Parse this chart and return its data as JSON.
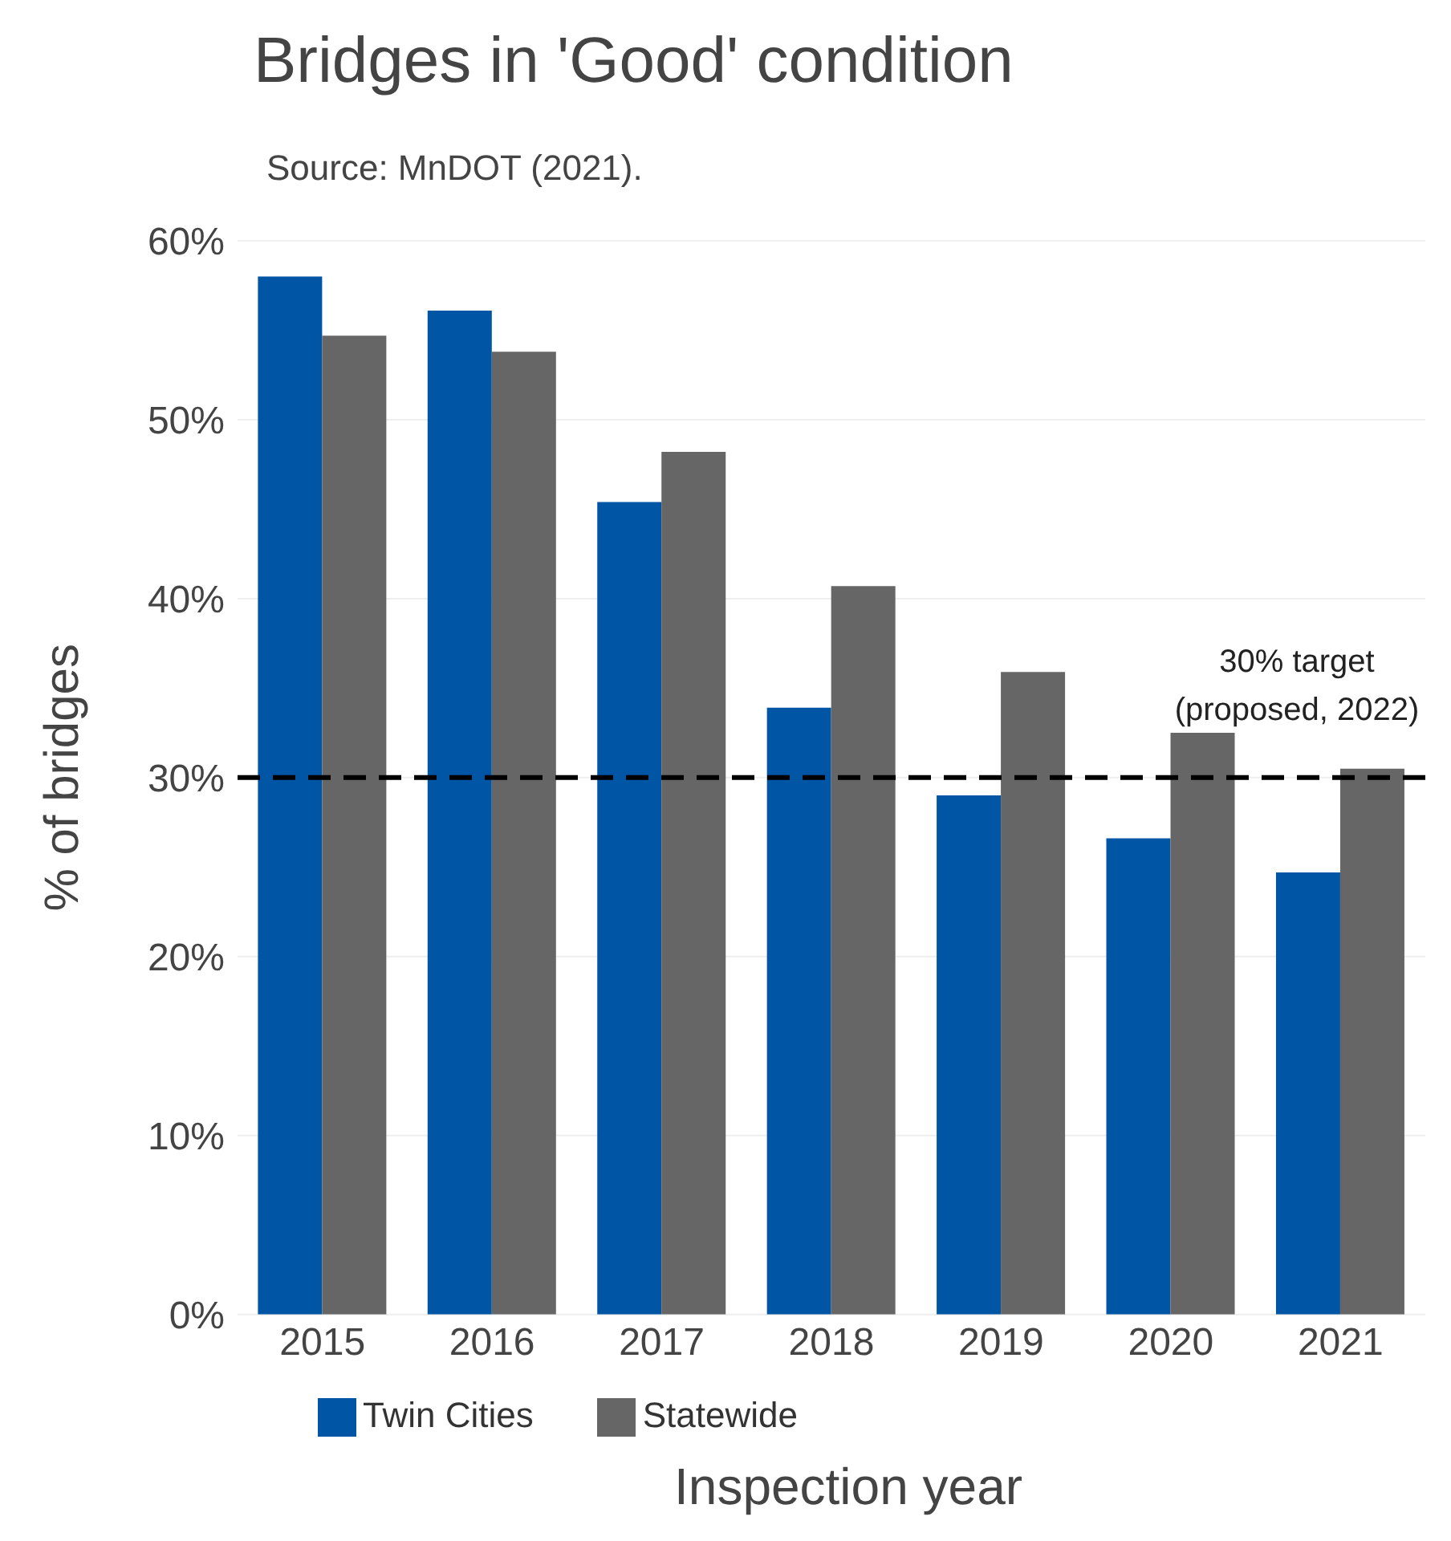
{
  "chart_data": {
    "type": "bar",
    "title": "Bridges in 'Good' condition",
    "subtitle": "Source: MnDOT (2021).",
    "xlabel": "Inspection year",
    "ylabel": "% of bridges",
    "categories": [
      "2015",
      "2016",
      "2017",
      "2018",
      "2019",
      "2020",
      "2021"
    ],
    "series": [
      {
        "name": "Twin Cities",
        "color": "#0055a5",
        "values": [
          58.0,
          56.1,
          45.4,
          33.9,
          29.0,
          26.6,
          24.7
        ]
      },
      {
        "name": "Statewide",
        "color": "#666666",
        "values": [
          54.7,
          53.8,
          48.2,
          40.7,
          35.9,
          32.5,
          30.5
        ]
      }
    ],
    "ylim": [
      0,
      60
    ],
    "yticks": [
      {
        "value": 0,
        "label": "0%"
      },
      {
        "value": 10,
        "label": "10%"
      },
      {
        "value": 20,
        "label": "20%"
      },
      {
        "value": 30,
        "label": "30%"
      },
      {
        "value": 40,
        "label": "40%"
      },
      {
        "value": 50,
        "label": "50%"
      },
      {
        "value": 60,
        "label": "60%"
      }
    ],
    "ref_lines": [
      {
        "axis": "y",
        "value": 30,
        "label": "30% target\n(proposed, 2022)",
        "color": "#000000",
        "line_style": "dashed"
      }
    ],
    "grid": "y",
    "legend": "bottom"
  }
}
